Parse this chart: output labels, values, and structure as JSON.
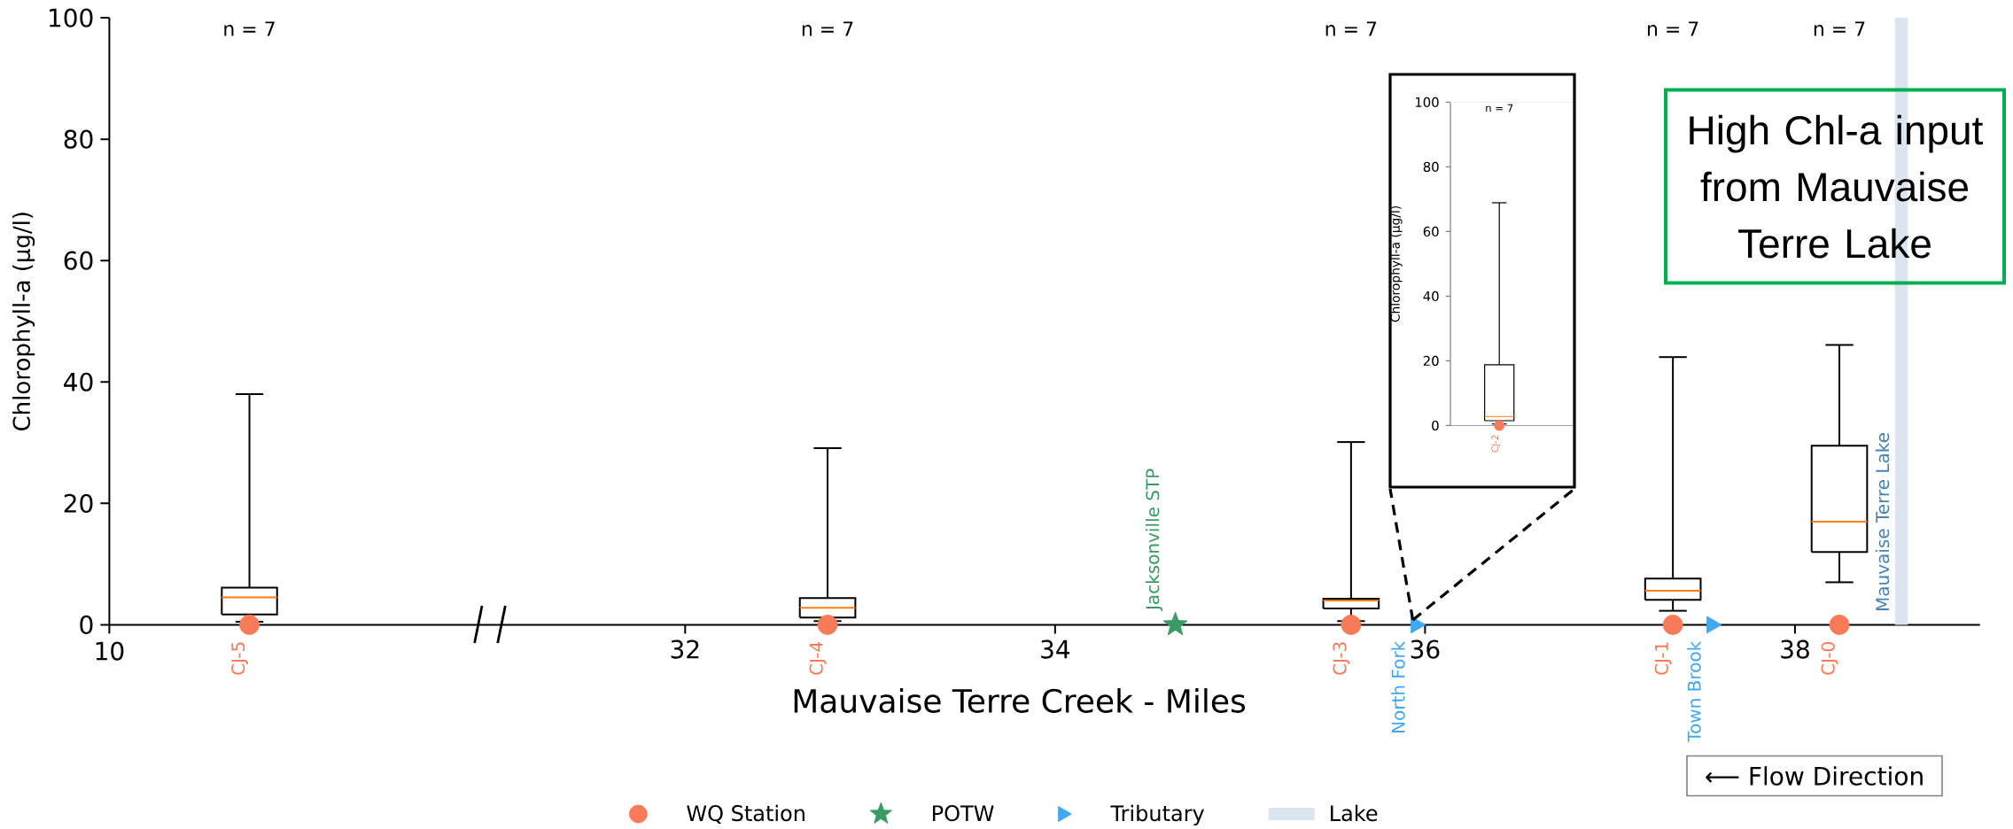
{
  "chart_data": [
    {
      "type": "box",
      "categories": [
        null
      ],
      "ylabel": "Chlorophyll-a (μg/l)",
      "ylim": [
        0,
        100
      ],
      "yticks": [
        0,
        20,
        40,
        60,
        80,
        100
      ],
      "tick_labels": "y",
      "series": [
        {
          "type": "box",
          "color": "#000000",
          "boxes": [
            {
              "low": 0.5,
              "q1": 1.7,
              "median": 4.5,
              "q3": 6.1,
              "high": 38
            }
          ]
        },
        {
          "type": "scatter",
          "color": "#f77b58",
          "marker": "circle",
          "values": [
            0
          ],
          "value_labels": [
            "CJ-5"
          ]
        }
      ],
      "annotations": [
        "10",
        "n = 7"
      ]
    },
    {
      "type": "box",
      "xlabel": "Mauvaise Terre Creek - Miles",
      "xlim": [
        30.94,
        39
      ],
      "xticks": [
        32,
        34,
        36,
        38
      ],
      "ylim": [
        0,
        100
      ],
      "tick_labels": "x",
      "legend": "bottom",
      "series": [
        {
          "type": "box",
          "color": "#000000",
          "x": [
            32.77,
            35.6,
            37.34,
            38.24
          ],
          "boxes": [
            {
              "low": 0.6,
              "q1": 1.2,
              "median": 2.8,
              "q3": 4.4,
              "high": 29.1
            },
            {
              "low": 0.6,
              "q1": 2.7,
              "median": 4.0,
              "q3": 4.3,
              "high": 30.1
            },
            {
              "low": 2.3,
              "q1": 4.1,
              "median": 5.6,
              "q3": 7.6,
              "high": 44.1
            },
            {
              "low": 7.0,
              "q1": 12.0,
              "median": 17.0,
              "q3": 29.5,
              "high": 46.1
            }
          ]
        },
        {
          "type": "scatter",
          "name": "WQ Station",
          "color": "#f77b58",
          "marker": "circle",
          "x": [
            32.77,
            35.6,
            37.34,
            38.24
          ],
          "values": [
            0,
            0,
            0,
            0
          ],
          "value_labels": [
            "CJ-4",
            "CJ-3",
            "CJ-1",
            "CJ-0"
          ]
        },
        {
          "type": "scatter",
          "name": "POTW",
          "color": "#3a9a66",
          "marker": "star",
          "x": [
            34.65
          ],
          "values": [
            0
          ],
          "value_labels": [
            "Jacksonville STP"
          ]
        },
        {
          "type": "scatter",
          "name": "Tributary",
          "color": "#40a8f0",
          "marker": "triangle",
          "x": [
            35.95,
            37.55
          ],
          "values": [
            0,
            0
          ],
          "value_labels": [
            "North Fork",
            "Town Brook"
          ]
        }
      ],
      "bands": [
        {
          "axis": "x",
          "from": 38.54,
          "to": 38.61,
          "label": "Mauvaise Terre Lake",
          "color": "#dae5ef"
        }
      ],
      "annotations": [
        "n = 7",
        "n = 7",
        "n = 7",
        "n = 7",
        "High Chl-a input from Mauvaise Terre Lake",
        "⟵ Flow Direction",
        "Lake"
      ]
    },
    {
      "type": "box",
      "categories": [
        null
      ],
      "ylabel": "Chlorophyll-a (μg/l)",
      "ylim": [
        0,
        100
      ],
      "yticks": [
        0,
        20,
        40,
        60,
        80,
        100
      ],
      "tick_labels": "y",
      "series": [
        {
          "type": "box",
          "color": "#000000",
          "boxes": [
            {
              "low": 0.5,
              "q1": 1.5,
              "median": 2.8,
              "q3": 18.8,
              "high": 68.9
            }
          ]
        },
        {
          "type": "scatter",
          "color": "#f77b58",
          "marker": "circle",
          "values": [
            0
          ],
          "value_labels": [
            "CJ-2"
          ]
        }
      ],
      "ref_lines": [
        {
          "axis": "y",
          "value": 0,
          "color": "#8c8c8c"
        },
        {
          "axis": "y",
          "value": 100,
          "color": "#e6e6e6"
        }
      ],
      "annotations": [
        "n = 7"
      ]
    }
  ]
}
